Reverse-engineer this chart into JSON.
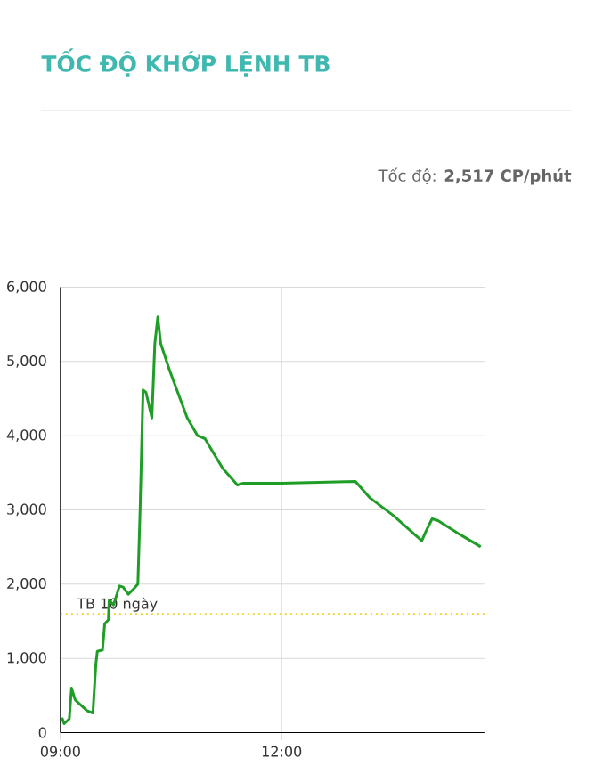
{
  "chart_data": {
    "type": "line",
    "title": "TỐC ĐỘ KHỚP LỆNH TB",
    "subtitle": "Tốc độ: **2,517 CP/phút**",
    "x": [
      9.02,
      9.05,
      9.12,
      9.15,
      9.2,
      9.36,
      9.44,
      9.48,
      9.5,
      9.57,
      9.6,
      9.65,
      9.66,
      9.72,
      9.8,
      9.85,
      9.92,
      10.0,
      10.05,
      10.08,
      10.12,
      10.16,
      10.24,
      10.28,
      10.32,
      10.36,
      10.48,
      10.6,
      10.72,
      10.86,
      10.96,
      11.08,
      11.2,
      11.4,
      11.48,
      12.0,
      13.0,
      13.2,
      13.52,
      13.9,
      13.96,
      14.04,
      14.12,
      14.4,
      14.7
    ],
    "series": [
      {
        "color": "#1f9e27",
        "values": [
          200,
          120,
          184,
          600,
          440,
          296,
          264,
          920,
          1096,
          1112,
          1464,
          1520,
          1784,
          1720,
          1976,
          1960,
          1864,
          1944,
          2000,
          3000,
          4616,
          4584,
          4240,
          5240,
          5600,
          5240,
          4880,
          4560,
          4240,
          4000,
          3960,
          3760,
          3560,
          3336,
          3360,
          3360,
          3384,
          3160,
          2920,
          2584,
          2720,
          2880,
          2856,
          2680,
          2504
        ]
      }
    ],
    "xlim": [
      9,
      14.75
    ],
    "xticks": [
      {
        "value": 9,
        "label": "09:00"
      },
      {
        "value": 12,
        "label": "12:00"
      }
    ],
    "ylim": [
      0,
      6000
    ],
    "yticks": [
      0,
      {
        "value": 1000,
        "label": "1,000"
      },
      {
        "value": 2000,
        "label": "2,000"
      },
      {
        "value": 3000,
        "label": "3,000"
      },
      {
        "value": 4000,
        "label": "4,000"
      },
      {
        "value": 5000,
        "label": "5,000"
      },
      {
        "value": 6000,
        "label": "6,000"
      }
    ],
    "ref_lines": [
      {
        "axis": "y",
        "value": 1600,
        "label": "TB 10 ngày",
        "color": "#f2d024",
        "line_style": "dotted"
      }
    ],
    "grid": true,
    "legend": false,
    "marker": "none",
    "line_style": "solid"
  }
}
